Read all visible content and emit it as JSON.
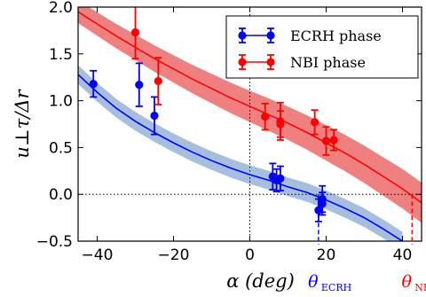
{
  "chart_data": {
    "type": "scatter",
    "xlabel": "α (deg)",
    "ylabel": "u⊥τ/Δr",
    "xlim": [
      -45,
      45
    ],
    "ylim": [
      -0.5,
      2.0
    ],
    "xticks": [
      -40,
      -20,
      0,
      20,
      40
    ],
    "xtick_labels": [
      "−40",
      "−20",
      "0",
      "20",
      "40"
    ],
    "yticks": [
      -0.5,
      0.0,
      0.5,
      1.0,
      1.5,
      2.0
    ],
    "ytick_labels": [
      "−0.5",
      "0.0",
      "0.5",
      "1.0",
      "1.5",
      "2.0"
    ],
    "reference_lines": {
      "x": 0,
      "y": 0,
      "style": "dotted"
    },
    "legend": {
      "position": "top-right"
    },
    "series": [
      {
        "name": "ECRH phase",
        "color": "#0000ff",
        "band_color": "#a7bfde",
        "points": [
          {
            "x": -41,
            "y": 1.18,
            "err": 0.14
          },
          {
            "x": -29,
            "y": 1.17,
            "err": 0.23
          },
          {
            "x": -25,
            "y": 0.84,
            "err": 0.2
          },
          {
            "x": 6,
            "y": 0.19,
            "err": 0.14
          },
          {
            "x": 7,
            "y": 0.15,
            "err": 0.12
          },
          {
            "x": 8,
            "y": 0.17,
            "err": 0.13
          },
          {
            "x": 18,
            "y": -0.17,
            "err": 0.12
          },
          {
            "x": 19,
            "y": -0.05,
            "err": 0.14
          },
          {
            "x": 19,
            "y": -0.1,
            "err": 0.12
          }
        ],
        "fit_curve": [
          {
            "x": -45,
            "y": 1.28
          },
          {
            "x": -40,
            "y": 1.09
          },
          {
            "x": -35,
            "y": 0.92
          },
          {
            "x": -30,
            "y": 0.78
          },
          {
            "x": -25,
            "y": 0.66
          },
          {
            "x": -20,
            "y": 0.55
          },
          {
            "x": -15,
            "y": 0.45
          },
          {
            "x": -10,
            "y": 0.36
          },
          {
            "x": -5,
            "y": 0.28
          },
          {
            "x": 0,
            "y": 0.21
          },
          {
            "x": 5,
            "y": 0.15
          },
          {
            "x": 10,
            "y": 0.08
          },
          {
            "x": 15,
            "y": 0.02
          },
          {
            "x": 20,
            "y": -0.06
          },
          {
            "x": 25,
            "y": -0.15
          },
          {
            "x": 30,
            "y": -0.25
          },
          {
            "x": 35,
            "y": -0.37
          },
          {
            "x": 40,
            "y": -0.5
          }
        ],
        "band_halfwidth": 0.1,
        "crossing_label": {
          "x": 18,
          "main": "θ",
          "sub": "ECRH"
        }
      },
      {
        "name": "NBI phase",
        "color": "#ff0000",
        "band_color": "#ef8080",
        "points": [
          {
            "x": -30,
            "y": 1.73,
            "err": 0.28
          },
          {
            "x": -24,
            "y": 1.21,
            "err": 0.25
          },
          {
            "x": 4,
            "y": 0.83,
            "err": 0.14
          },
          {
            "x": 8,
            "y": 0.78,
            "err": 0.2
          },
          {
            "x": 8,
            "y": 0.75,
            "err": 0.14
          },
          {
            "x": 17,
            "y": 0.77,
            "err": 0.13
          },
          {
            "x": 20,
            "y": 0.57,
            "err": 0.15
          },
          {
            "x": 22,
            "y": 0.58,
            "err": 0.11
          }
        ],
        "fit_curve": [
          {
            "x": -45,
            "y": 1.95
          },
          {
            "x": -40,
            "y": 1.82
          },
          {
            "x": -35,
            "y": 1.69
          },
          {
            "x": -30,
            "y": 1.57
          },
          {
            "x": -25,
            "y": 1.45
          },
          {
            "x": -20,
            "y": 1.34
          },
          {
            "x": -15,
            "y": 1.23
          },
          {
            "x": -10,
            "y": 1.13
          },
          {
            "x": -5,
            "y": 1.03
          },
          {
            "x": 0,
            "y": 0.94
          },
          {
            "x": 5,
            "y": 0.85
          },
          {
            "x": 10,
            "y": 0.76
          },
          {
            "x": 15,
            "y": 0.66
          },
          {
            "x": 20,
            "y": 0.55
          },
          {
            "x": 25,
            "y": 0.44
          },
          {
            "x": 30,
            "y": 0.32
          },
          {
            "x": 35,
            "y": 0.19
          },
          {
            "x": 40,
            "y": 0.06
          },
          {
            "x": 45,
            "y": -0.09
          }
        ],
        "band_halfwidth": 0.12,
        "band_width_factor": [
          1.0,
          1.8
        ],
        "crossing_label": {
          "x": 42.5,
          "main": "θ",
          "sub": "NBI"
        }
      }
    ]
  }
}
